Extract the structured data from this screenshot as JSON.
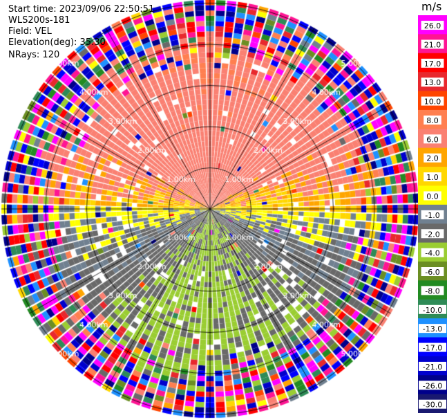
{
  "header": {
    "start_time": "Start time: 2023/09/06 22:50:51",
    "instrument": "WLS200s-181",
    "field": "Field: VEL",
    "elevation": "Elevation(deg): 35.30",
    "nrays": "NRays: 120"
  },
  "chart_data": {
    "type": "heatmap",
    "projection": "polar-ppi",
    "field": "VEL",
    "n_rays": 120,
    "max_range_km": 5.0,
    "range_rings_km": [
      1.0,
      2.0,
      3.0,
      4.0,
      5.0
    ],
    "range_ring_labels": [
      "1.00km",
      "2.00km",
      "3.00km",
      "4.00km",
      "5.00km"
    ],
    "radial_lines_deg": [
      0,
      30,
      60,
      90,
      120,
      150,
      180,
      210,
      240,
      270,
      300,
      330
    ],
    "pattern": "positive radial velocity (yellow/orange) to the north, negative (green) to the south, near-zero (gray) along east-west, noisy random values beyond about 3.5 km",
    "colorbar": {
      "unit": "m/s",
      "tick_labels": [
        "26.0",
        "21.0",
        "17.0",
        "13.0",
        "10.0",
        "8.0",
        "6.0",
        "2.0",
        "1.0",
        "0.0",
        "-1.0",
        "-2.0",
        "-4.0",
        "-6.0",
        "-8.0",
        "-10.0",
        "-13.0",
        "-17.0",
        "-21.0",
        "-26.0",
        "-30.0"
      ],
      "colors": [
        "#ff00ff",
        "#ff1493",
        "#ff0000",
        "#e8282d",
        "#ff4500",
        "#ff7f50",
        "#fa8072",
        "#ffa500",
        "#ffd700",
        "#ffff00",
        "#708090",
        "#696969",
        "#9acd32",
        "#6b8e23",
        "#228b22",
        "#2e8b57",
        "#1e90ff",
        "#0000ff",
        "#0000cd",
        "#00008b",
        "#191970"
      ]
    }
  }
}
